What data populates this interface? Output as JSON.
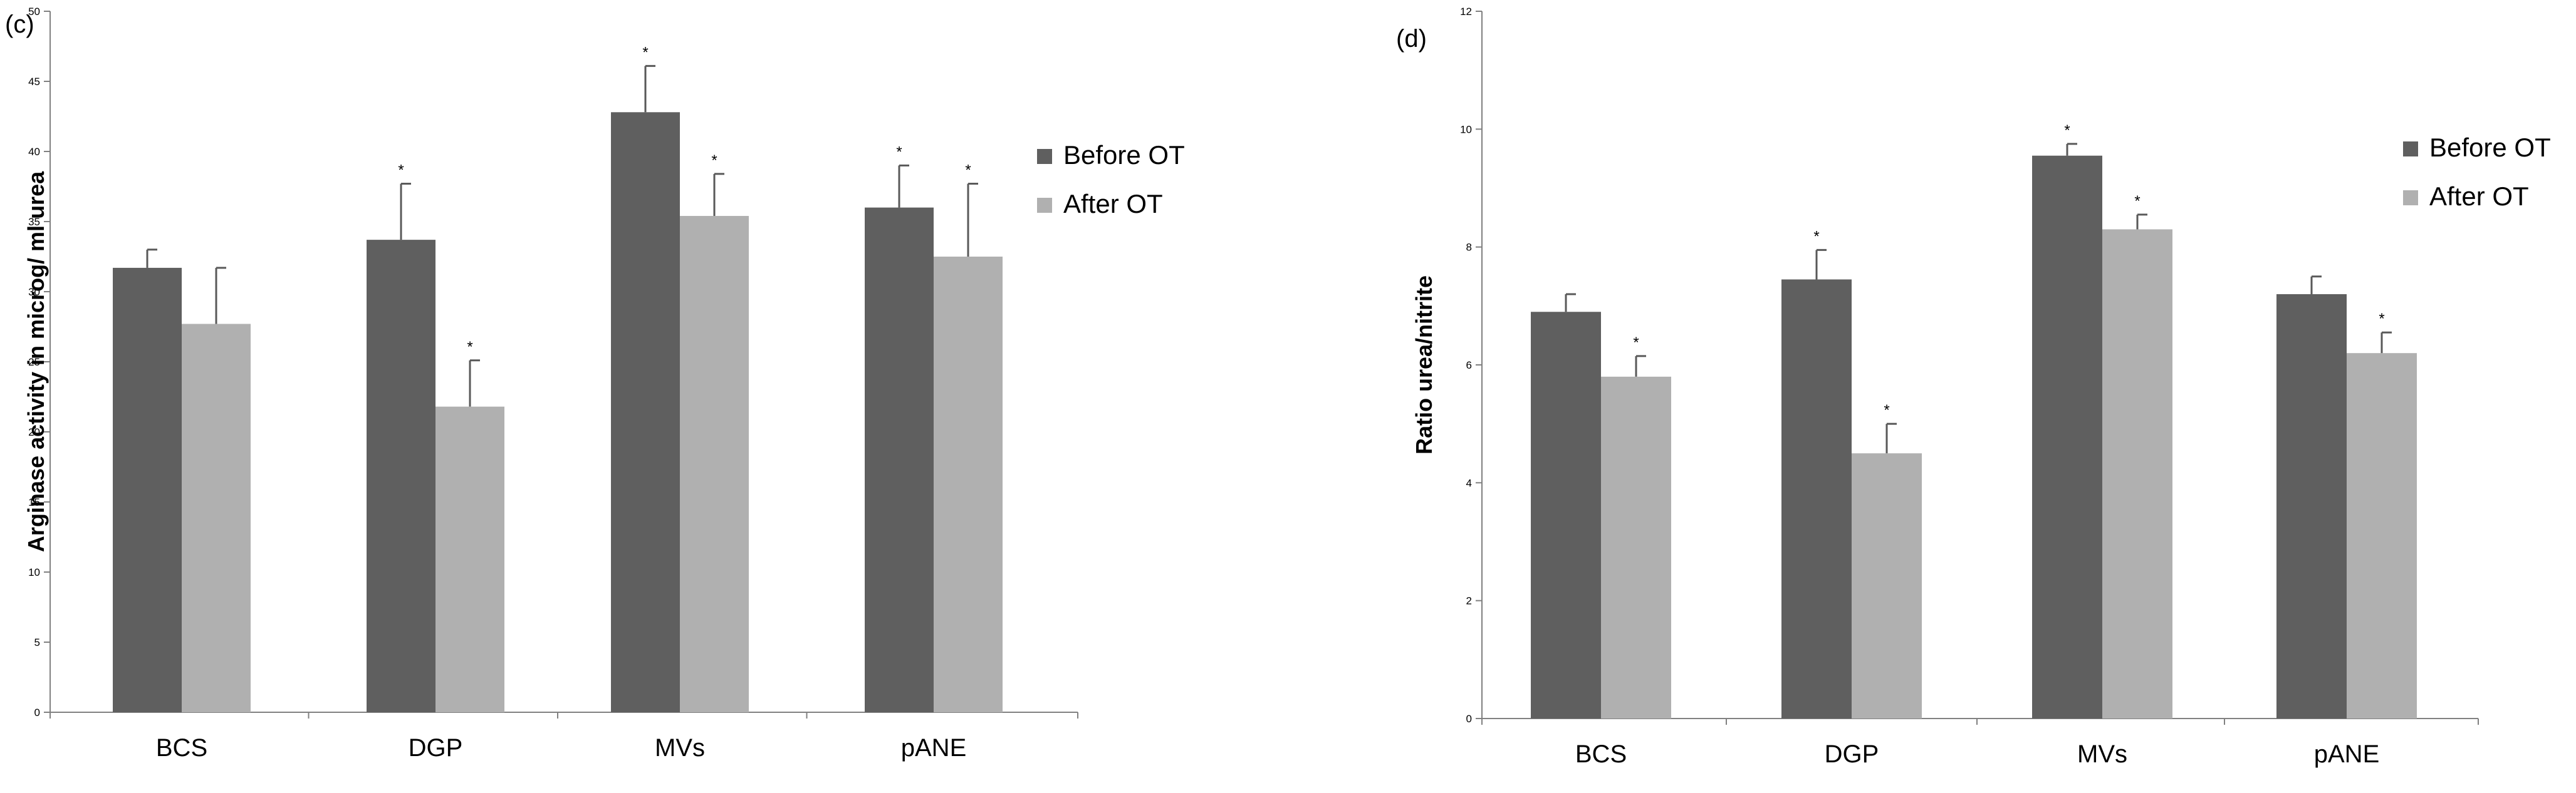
{
  "chart_data": [
    {
      "type": "bar",
      "panel_label": "(c)",
      "ylabel": "Arginase activity in microg/ ml urea",
      "xlabel": "",
      "ylim": [
        0,
        50
      ],
      "yticks": [
        0,
        5,
        10,
        15,
        20,
        25,
        30,
        35,
        40,
        45,
        50
      ],
      "categories": [
        "BCS",
        "DGP",
        "MVs",
        "pANE"
      ],
      "legend_position": "right",
      "grid": false,
      "series": [
        {
          "name": "Before OT",
          "color": "#5f5f5f",
          "values": [
            31.7,
            33.7,
            42.8,
            36.0
          ],
          "errors": [
            1.3,
            4.0,
            3.3,
            3.0
          ],
          "significant": [
            false,
            true,
            true,
            true
          ]
        },
        {
          "name": "After OT",
          "color": "#b0b0b0",
          "values": [
            27.7,
            21.8,
            35.4,
            32.5
          ],
          "errors": [
            4.0,
            3.3,
            3.0,
            5.2
          ],
          "significant": [
            false,
            true,
            true,
            true
          ]
        }
      ],
      "significance_marker": "*"
    },
    {
      "type": "bar",
      "panel_label": "(d)",
      "ylabel": "Ratio urea/nitrite",
      "xlabel": "",
      "ylim": [
        0,
        12
      ],
      "yticks": [
        0,
        2,
        4,
        6,
        8,
        10,
        12
      ],
      "categories": [
        "BCS",
        "DGP",
        "MVs",
        "pANE"
      ],
      "legend_position": "right",
      "grid": false,
      "series": [
        {
          "name": "Before OT",
          "color": "#5f5f5f",
          "values": [
            6.9,
            7.45,
            9.55,
            7.2
          ],
          "errors": [
            0.3,
            0.5,
            0.2,
            0.3
          ],
          "significant": [
            false,
            true,
            true,
            false
          ]
        },
        {
          "name": "After OT",
          "color": "#b0b0b0",
          "values": [
            5.8,
            4.5,
            8.3,
            6.2
          ],
          "errors": [
            0.35,
            0.5,
            0.25,
            0.35
          ],
          "significant": [
            true,
            true,
            true,
            true
          ]
        }
      ],
      "significance_marker": "*"
    }
  ]
}
